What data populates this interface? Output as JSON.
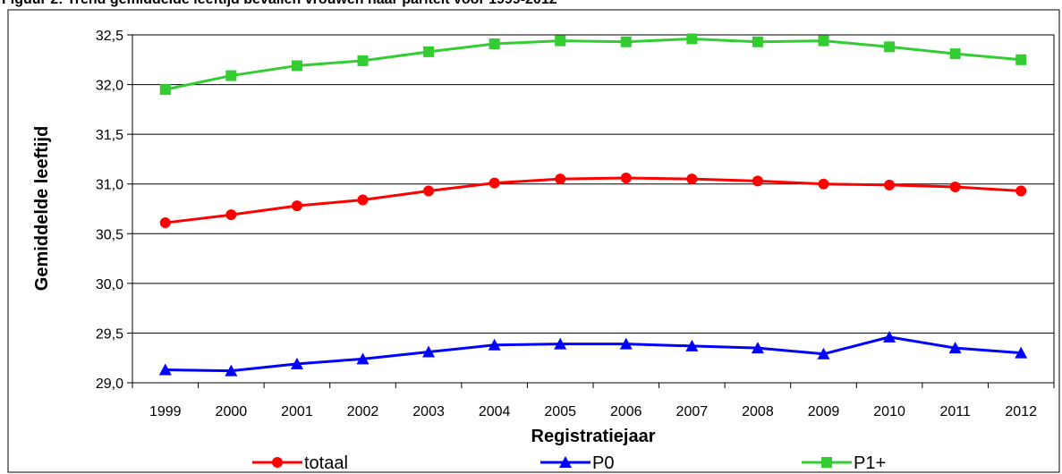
{
  "chart_data": {
    "type": "line",
    "title": "Figuur 2: Trend gemiddelde leeftijd bevallen vrouwen naar pariteit voor 1999-2012",
    "xlabel": "Registratiejaar",
    "ylabel": "Gemiddelde leeftijd",
    "categories": [
      "1999",
      "2000",
      "2001",
      "2002",
      "2003",
      "2004",
      "2005",
      "2006",
      "2007",
      "2008",
      "2009",
      "2010",
      "2011",
      "2012"
    ],
    "ylim": [
      29.0,
      32.5
    ],
    "yticks": [
      "29,0",
      "29,5",
      "30,0",
      "30,5",
      "31,0",
      "31,5",
      "32,0",
      "32,5"
    ],
    "grid": true,
    "legend_position": "bottom",
    "series": [
      {
        "name": "totaal",
        "color": "#ff0000",
        "marker": "circle",
        "values": [
          30.61,
          30.69,
          30.78,
          30.84,
          30.93,
          31.01,
          31.05,
          31.06,
          31.05,
          31.03,
          31.0,
          30.99,
          30.97,
          30.93
        ]
      },
      {
        "name": "P0",
        "color": "#0000ff",
        "marker": "triangle",
        "values": [
          29.13,
          29.12,
          29.19,
          29.24,
          29.31,
          29.38,
          29.39,
          29.39,
          29.37,
          29.35,
          29.29,
          29.46,
          29.35,
          29.3
        ]
      },
      {
        "name": "P1+",
        "color": "#33cc33",
        "marker": "square",
        "values": [
          31.95,
          32.09,
          32.19,
          32.24,
          32.33,
          32.41,
          32.44,
          32.43,
          32.46,
          32.43,
          32.44,
          32.38,
          32.31,
          32.25
        ]
      }
    ]
  }
}
